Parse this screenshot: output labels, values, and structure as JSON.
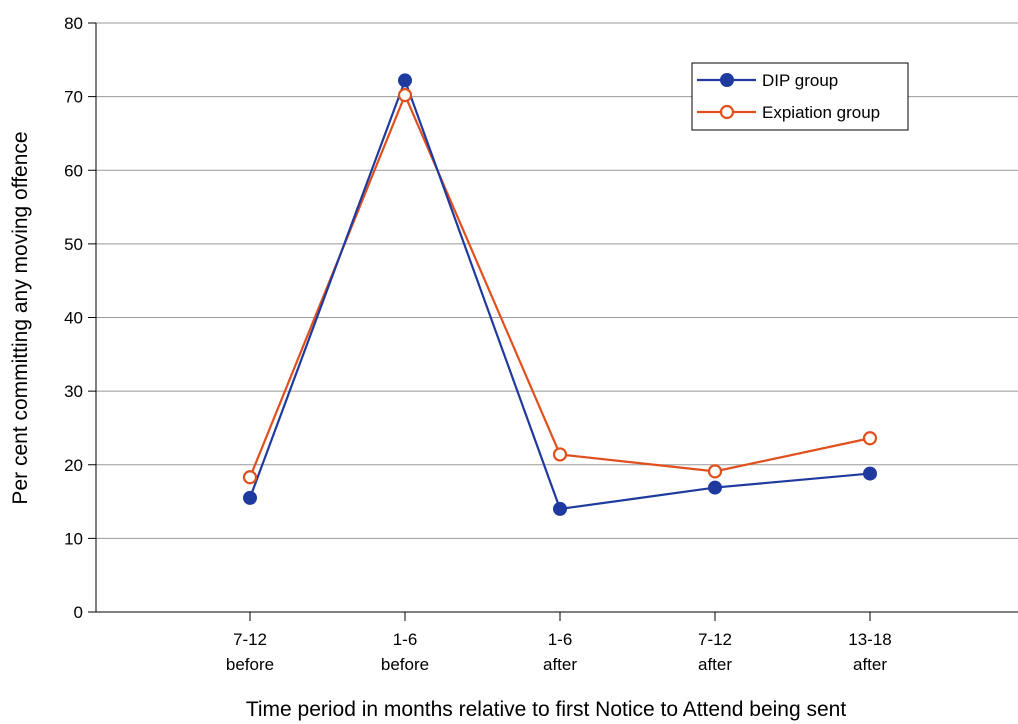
{
  "chart_data": {
    "type": "line",
    "title": "",
    "xlabel": "Time period in months relative to first Notice to Attend being sent",
    "ylabel": "Per cent committing any moving offence",
    "ylim": [
      0,
      80
    ],
    "yticks": [
      0,
      10,
      20,
      30,
      40,
      50,
      60,
      70,
      80
    ],
    "categories": [
      [
        "7-12",
        "before"
      ],
      [
        "1-6",
        "before"
      ],
      [
        "1-6",
        "after"
      ],
      [
        "7-12",
        "after"
      ],
      [
        "13-18",
        "after"
      ]
    ],
    "grid": true,
    "legend_position": "top-right",
    "series": [
      {
        "name": "DIP group",
        "color": "#1f3a9e",
        "marker": "filled-circle",
        "values": [
          15.5,
          72.2,
          14.0,
          16.9,
          18.8
        ]
      },
      {
        "name": "Expiation group",
        "color": "#e0501e",
        "marker": "open-circle",
        "values": [
          18.3,
          70.2,
          21.4,
          19.1,
          23.6
        ]
      }
    ]
  }
}
